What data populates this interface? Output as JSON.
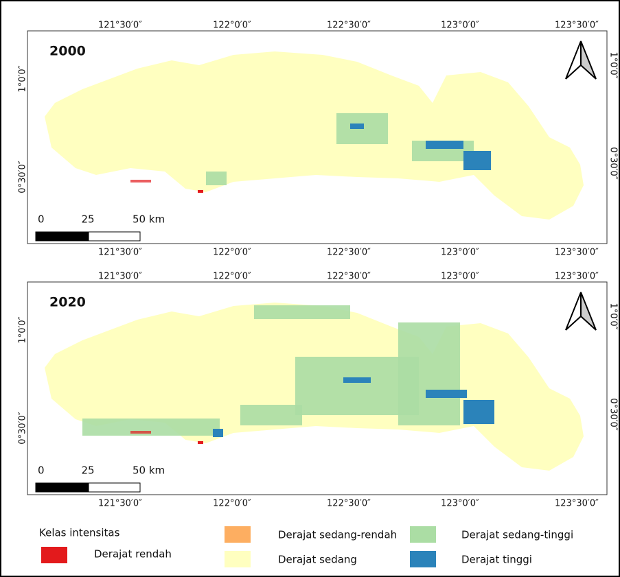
{
  "maps": [
    {
      "year": "2000",
      "top_labels": [
        "121°30′0″",
        "122°0′0″",
        "122°30′0″",
        "123°0′0″",
        "123°30′0″"
      ],
      "bottom_labels": [
        "121°30′0″",
        "122°0′0″",
        "122°30′0″",
        "123°0′0″",
        "123°30′0″"
      ],
      "left_labels": [
        "1°0′0″",
        "0°30′0″"
      ],
      "right_labels": [
        "1°0′0″",
        "0°30′0″"
      ],
      "scale_labels": [
        "0",
        "25",
        "50 km"
      ]
    },
    {
      "year": "2020",
      "top_labels": [
        "121°30′0″",
        "122°0′0″",
        "122°30′0″",
        "123°0′0″",
        "123°30′0″"
      ],
      "bottom_labels": [
        "121°30′0″",
        "122°0′0″",
        "122°30′0″",
        "123°0′0″",
        "123°30′0″"
      ],
      "left_labels": [
        "1°0′0″",
        "0°30′0″"
      ],
      "right_labels": [
        "1°0′0″",
        "0°30′0″"
      ],
      "scale_labels": [
        "0",
        "25",
        "50 km"
      ]
    }
  ],
  "legend": {
    "title": "Kelas intensitas",
    "items": [
      {
        "label": "Derajat rendah",
        "color": "#e31a1c"
      },
      {
        "label": "Derajat sedang-rendah",
        "color": "#fdae61"
      },
      {
        "label": "Derajat sedang",
        "color": "#ffffc0"
      },
      {
        "label": "Derajat sedang-tinggi",
        "color": "#abdda4"
      },
      {
        "label": "Derajat tinggi",
        "color": "#2b83ba"
      }
    ]
  }
}
